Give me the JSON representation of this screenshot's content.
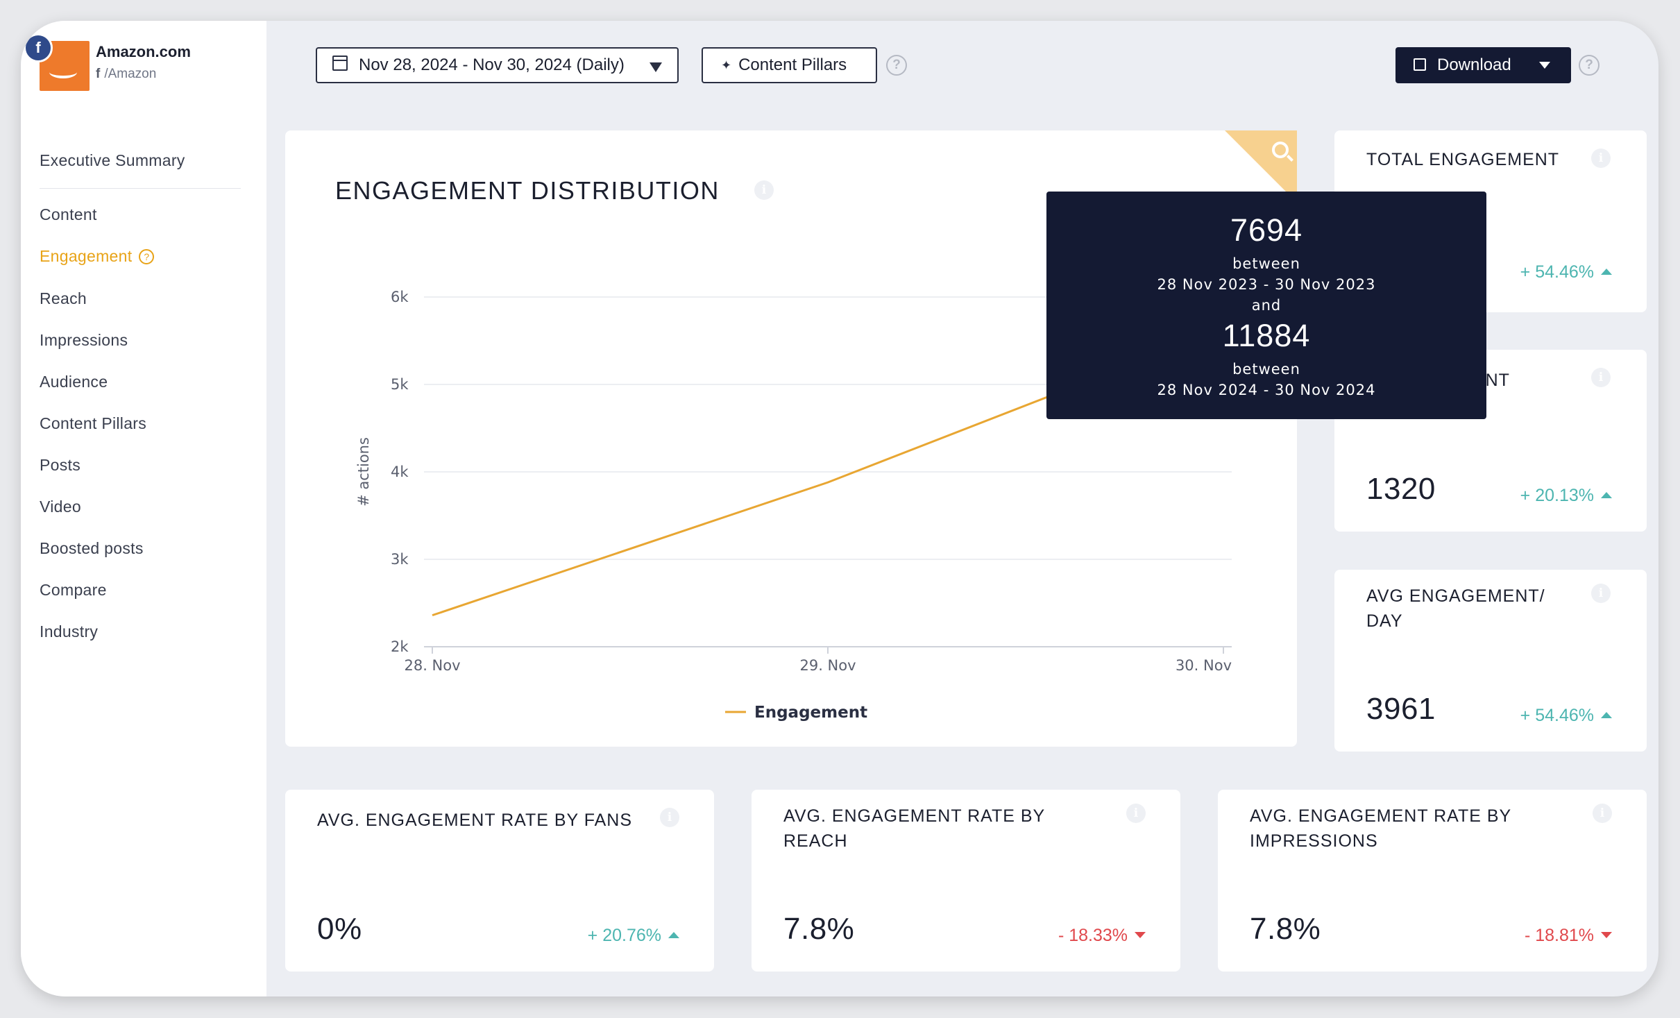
{
  "brand": {
    "name": "Amazon.com",
    "handle": "/Amazon",
    "network_icon": "facebook-icon"
  },
  "sidebar": {
    "items": [
      {
        "label": "Executive Summary"
      },
      {
        "label": "Content"
      },
      {
        "label": "Engagement",
        "active": true
      },
      {
        "label": "Reach"
      },
      {
        "label": "Impressions"
      },
      {
        "label": "Audience"
      },
      {
        "label": "Content Pillars"
      },
      {
        "label": "Posts"
      },
      {
        "label": "Video"
      },
      {
        "label": "Boosted posts"
      },
      {
        "label": "Compare"
      },
      {
        "label": "Industry"
      }
    ]
  },
  "toolbar": {
    "date_range": "Nov 28, 2024 - Nov 30, 2024 (Daily)",
    "content_pillars": "Content Pillars",
    "download": "Download",
    "help_glyph": "?"
  },
  "chart_card": {
    "title": "ENGAGEMENT DISTRIBUTION",
    "info_glyph": "i"
  },
  "chart_data": {
    "type": "line",
    "title": "ENGAGEMENT DISTRIBUTION",
    "ylabel": "# actions",
    "xlabel": "",
    "x": [
      "28. Nov",
      "29. Nov",
      "30. Nov"
    ],
    "yticks": [
      "2k",
      "3k",
      "4k",
      "5k",
      "6k"
    ],
    "ylim": [
      2000,
      6000
    ],
    "grid": true,
    "legend_position": "bottom-center",
    "series": [
      {
        "name": "Engagement",
        "color": "#e8a632",
        "values": [
          2360,
          3880,
          5640
        ]
      }
    ]
  },
  "tooltip": {
    "value_1": "7694",
    "between_1": "between",
    "range_1": "28 Nov 2023 - 30 Nov 2023",
    "and": "and",
    "value_2": "11884",
    "between_2": "between",
    "range_2": "28 Nov 2024 - 30 Nov 2024"
  },
  "metrics": {
    "total_engagement": {
      "title": "TOTAL ENGAGEMENT",
      "change": "+ 54.46%",
      "direction": "up"
    },
    "second": {
      "title_visible": "GEMENT",
      "value": "1320",
      "change": "+ 20.13%",
      "direction": "up"
    },
    "avg_day": {
      "title_line1": "AVG ENGAGEMENT/",
      "title_line2": "DAY",
      "value": "3961",
      "change": "+ 54.46%",
      "direction": "up"
    },
    "rate_fans": {
      "title": "AVG. ENGAGEMENT RATE BY FANS",
      "value": "0%",
      "change": "+ 20.76%",
      "direction": "up"
    },
    "rate_reach": {
      "title_line1": "AVG. ENGAGEMENT RATE BY",
      "title_line2": "REACH",
      "value": "7.8%",
      "change": "- 18.33%",
      "direction": "down"
    },
    "rate_impressions": {
      "title_line1": "AVG. ENGAGEMENT RATE BY",
      "title_line2": "IMPRESSIONS",
      "value": "7.8%",
      "change": "- 18.81%",
      "direction": "down"
    }
  },
  "colors": {
    "accent": "#e8a317",
    "positive": "#4db5b0",
    "negative": "#e0484c",
    "dark": "#141a33"
  }
}
